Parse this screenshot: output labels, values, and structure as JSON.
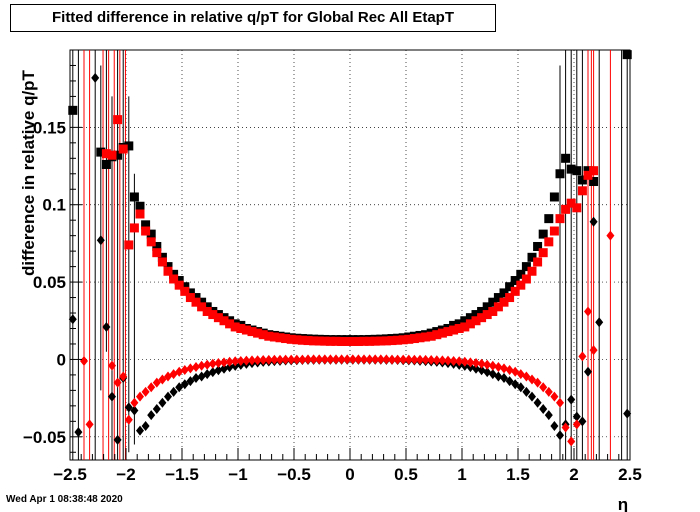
{
  "footer": {
    "timestamp": "Wed Apr  1 08:38:48 2020"
  },
  "chart_data": {
    "type": "scatter",
    "title": "Fitted difference in relative q/pT for Global Rec All EtapT",
    "xlabel": "η",
    "ylabel": "difference in relative q/pT",
    "xlim": [
      -2.5,
      2.5
    ],
    "ylim": [
      -0.065,
      0.2
    ],
    "grid": true,
    "x_ticks": [
      "−2.5",
      "−2",
      "−1.5",
      "−1",
      "−0.5",
      "0",
      "0.5",
      "1",
      "1.5",
      "2",
      "2.5"
    ],
    "y_ticks": [
      "−0.05",
      "0",
      "0.05",
      "0.1",
      "0.15"
    ],
    "series": [
      {
        "marker": "square",
        "color": "#000000",
        "x": [
          -2.475,
          -2.425,
          -2.375,
          -2.325,
          -2.275,
          -2.225,
          -2.175,
          -2.125,
          -2.075,
          -2.025,
          -1.975,
          -1.925,
          -1.875,
          -1.825,
          -1.775,
          -1.725,
          -1.675,
          -1.625,
          -1.575,
          -1.525,
          -1.475,
          -1.425,
          -1.375,
          -1.325,
          -1.275,
          -1.225,
          -1.175,
          -1.125,
          -1.075,
          -1.025,
          -0.975,
          -0.925,
          -0.875,
          -0.825,
          -0.775,
          -0.725,
          -0.675,
          -0.625,
          -0.575,
          -0.525,
          -0.475,
          -0.425,
          -0.375,
          -0.325,
          -0.275,
          -0.225,
          -0.175,
          -0.125,
          -0.075,
          -0.025,
          0.025,
          0.075,
          0.125,
          0.175,
          0.225,
          0.275,
          0.325,
          0.375,
          0.425,
          0.475,
          0.525,
          0.575,
          0.625,
          0.675,
          0.725,
          0.775,
          0.825,
          0.875,
          0.925,
          0.975,
          1.025,
          1.075,
          1.125,
          1.175,
          1.225,
          1.275,
          1.325,
          1.375,
          1.425,
          1.475,
          1.525,
          1.575,
          1.625,
          1.675,
          1.725,
          1.775,
          1.825,
          1.875,
          1.925,
          1.975,
          2.025,
          2.075,
          2.125,
          2.175,
          2.225,
          2.275,
          2.325,
          2.375,
          2.425,
          2.475
        ],
        "y": [
          0.161,
          null,
          null,
          null,
          null,
          0.134,
          0.126,
          0.131,
          0.132,
          0.137,
          0.138,
          0.105,
          0.099,
          0.087,
          0.081,
          0.073,
          0.066,
          0.06,
          0.055,
          0.051,
          0.047,
          0.043,
          0.04,
          0.037,
          0.034,
          0.031,
          0.029,
          0.027,
          0.025,
          0.023,
          0.022,
          0.02,
          0.019,
          0.018,
          0.017,
          0.016,
          0.0155,
          0.015,
          0.0145,
          0.014,
          0.0137,
          0.0135,
          0.0133,
          0.0131,
          0.013,
          0.0129,
          0.0128,
          0.0128,
          0.0128,
          0.0128,
          0.0128,
          0.0128,
          0.0128,
          0.0129,
          0.013,
          0.0131,
          0.0133,
          0.0135,
          0.0137,
          0.014,
          0.0145,
          0.015,
          0.0155,
          0.016,
          0.017,
          0.018,
          0.019,
          0.02,
          0.022,
          0.023,
          0.025,
          0.027,
          0.029,
          0.031,
          0.034,
          0.037,
          0.04,
          0.043,
          0.047,
          0.051,
          0.055,
          0.06,
          0.066,
          0.073,
          0.081,
          0.091,
          0.105,
          0.12,
          0.13,
          0.123,
          0.122,
          0.116,
          0.122,
          0.115,
          null,
          null,
          null,
          null,
          null,
          0.197
        ]
      },
      {
        "marker": "square",
        "color": "#ff0000",
        "x": [
          -2.175,
          -2.125,
          -2.075,
          -2.025,
          -1.975,
          -1.925,
          -1.875,
          -1.825,
          -1.775,
          -1.725,
          -1.675,
          -1.625,
          -1.575,
          -1.525,
          -1.475,
          -1.425,
          -1.375,
          -1.325,
          -1.275,
          -1.225,
          -1.175,
          -1.125,
          -1.075,
          -1.025,
          -0.975,
          -0.925,
          -0.875,
          -0.825,
          -0.775,
          -0.725,
          -0.675,
          -0.625,
          -0.575,
          -0.525,
          -0.475,
          -0.425,
          -0.375,
          -0.325,
          -0.275,
          -0.225,
          -0.175,
          -0.125,
          -0.075,
          -0.025,
          0.025,
          0.075,
          0.125,
          0.175,
          0.225,
          0.275,
          0.325,
          0.375,
          0.425,
          0.475,
          0.525,
          0.575,
          0.625,
          0.675,
          0.725,
          0.775,
          0.825,
          0.875,
          0.925,
          0.975,
          1.025,
          1.075,
          1.125,
          1.175,
          1.225,
          1.275,
          1.325,
          1.375,
          1.425,
          1.475,
          1.525,
          1.575,
          1.625,
          1.675,
          1.725,
          1.775,
          1.825,
          1.875,
          1.925,
          1.975,
          2.025,
          2.075,
          2.125,
          2.175
        ],
        "y": [
          0.133,
          0.132,
          0.155,
          0.136,
          0.074,
          0.085,
          0.094,
          0.083,
          0.076,
          0.069,
          0.063,
          0.057,
          0.052,
          0.048,
          0.044,
          0.04,
          0.037,
          0.034,
          0.031,
          0.029,
          0.027,
          0.025,
          0.023,
          0.021,
          0.02,
          0.019,
          0.018,
          0.017,
          0.016,
          0.015,
          0.0145,
          0.014,
          0.0135,
          0.013,
          0.0127,
          0.0124,
          0.0122,
          0.012,
          0.0119,
          0.0118,
          0.0117,
          0.0117,
          0.0116,
          0.0116,
          0.0116,
          0.0116,
          0.0117,
          0.0117,
          0.0118,
          0.0119,
          0.012,
          0.0122,
          0.0124,
          0.0127,
          0.013,
          0.0135,
          0.014,
          0.0145,
          0.015,
          0.016,
          0.017,
          0.018,
          0.019,
          0.02,
          0.021,
          0.023,
          0.025,
          0.027,
          0.029,
          0.031,
          0.034,
          0.037,
          0.04,
          0.044,
          0.048,
          0.052,
          0.057,
          0.063,
          0.069,
          0.076,
          0.083,
          0.091,
          0.097,
          0.101,
          0.098,
          0.109,
          0.119,
          0.122
        ]
      },
      {
        "marker": "diamond",
        "color": "#000000",
        "x": [
          -2.475,
          -2.425,
          -2.375,
          -2.325,
          -2.275,
          -2.225,
          -2.175,
          -2.125,
          -2.075,
          -2.025,
          -1.975,
          -1.925,
          -1.875,
          -1.825,
          -1.775,
          -1.725,
          -1.675,
          -1.625,
          -1.575,
          -1.525,
          -1.475,
          -1.425,
          -1.375,
          -1.325,
          -1.275,
          -1.225,
          -1.175,
          -1.125,
          -1.075,
          -1.025,
          -0.975,
          -0.925,
          -0.875,
          -0.825,
          -0.775,
          -0.725,
          -0.675,
          -0.625,
          -0.575,
          -0.525,
          -0.475,
          -0.425,
          -0.375,
          -0.325,
          -0.275,
          -0.225,
          -0.175,
          -0.125,
          -0.075,
          -0.025,
          0.025,
          0.075,
          0.125,
          0.175,
          0.225,
          0.275,
          0.325,
          0.375,
          0.425,
          0.475,
          0.525,
          0.575,
          0.625,
          0.675,
          0.725,
          0.775,
          0.825,
          0.875,
          0.925,
          0.975,
          1.025,
          1.075,
          1.125,
          1.175,
          1.225,
          1.275,
          1.325,
          1.375,
          1.425,
          1.475,
          1.525,
          1.575,
          1.625,
          1.675,
          1.725,
          1.775,
          1.825,
          1.875,
          1.925,
          1.975,
          2.025,
          2.075,
          2.125,
          2.175,
          2.225,
          2.275,
          2.325,
          2.375,
          2.425,
          2.475
        ],
        "y": [
          0.026,
          -0.047,
          null,
          null,
          0.182,
          0.077,
          0.021,
          -0.024,
          -0.052,
          -0.012,
          -0.031,
          -0.033,
          -0.046,
          -0.043,
          -0.036,
          -0.032,
          -0.028,
          -0.024,
          -0.021,
          -0.018,
          -0.016,
          -0.014,
          -0.012,
          -0.011,
          -0.0095,
          -0.0082,
          -0.007,
          -0.006,
          -0.005,
          -0.0042,
          -0.0035,
          -0.0029,
          -0.0024,
          -0.002,
          -0.0016,
          -0.0013,
          -0.0011,
          -0.0009,
          -0.0007,
          -0.0006,
          -0.0005,
          -0.0004,
          -0.0003,
          -0.0003,
          -0.0002,
          -0.0002,
          -0.0002,
          -0.0002,
          -0.0002,
          -0.0002,
          -0.0002,
          -0.0002,
          -0.0002,
          -0.0002,
          -0.0002,
          -0.0002,
          -0.0003,
          -0.0003,
          -0.0004,
          -0.0005,
          -0.0006,
          -0.0007,
          -0.0009,
          -0.0011,
          -0.0013,
          -0.0016,
          -0.002,
          -0.0024,
          -0.0029,
          -0.0035,
          -0.0042,
          -0.005,
          -0.006,
          -0.007,
          -0.0082,
          -0.0095,
          -0.011,
          -0.012,
          -0.014,
          -0.016,
          -0.018,
          -0.021,
          -0.024,
          -0.028,
          -0.032,
          -0.036,
          -0.043,
          -0.049,
          -0.042,
          -0.026,
          -0.037,
          -0.04,
          -0.008,
          0.089,
          0.024,
          null,
          null,
          null,
          null,
          -0.035
        ]
      },
      {
        "marker": "diamond",
        "color": "#ff0000",
        "x": [
          -2.375,
          -2.325,
          -2.125,
          -2.075,
          -2.025,
          -1.975,
          -1.925,
          -1.875,
          -1.825,
          -1.775,
          -1.725,
          -1.675,
          -1.625,
          -1.575,
          -1.525,
          -1.475,
          -1.425,
          -1.375,
          -1.325,
          -1.275,
          -1.225,
          -1.175,
          -1.125,
          -1.075,
          -1.025,
          -0.975,
          -0.925,
          -0.875,
          -0.825,
          -0.775,
          -0.725,
          -0.675,
          -0.625,
          -0.575,
          -0.525,
          -0.475,
          -0.425,
          -0.375,
          -0.325,
          -0.275,
          -0.225,
          -0.175,
          -0.125,
          -0.075,
          -0.025,
          0.025,
          0.075,
          0.125,
          0.175,
          0.225,
          0.275,
          0.325,
          0.375,
          0.425,
          0.475,
          0.525,
          0.575,
          0.625,
          0.675,
          0.725,
          0.775,
          0.825,
          0.875,
          0.925,
          0.975,
          1.025,
          1.075,
          1.125,
          1.175,
          1.225,
          1.275,
          1.325,
          1.375,
          1.425,
          1.475,
          1.525,
          1.575,
          1.625,
          1.675,
          1.725,
          1.775,
          1.825,
          1.875,
          1.925,
          1.975,
          2.025,
          2.075,
          2.125,
          2.175,
          2.325
        ],
        "y": [
          -0.001,
          -0.042,
          -0.004,
          -0.015,
          -0.011,
          -0.039,
          -0.028,
          -0.024,
          -0.021,
          -0.018,
          -0.015,
          -0.013,
          -0.011,
          -0.0095,
          -0.008,
          -0.0068,
          -0.0058,
          -0.0049,
          -0.0041,
          -0.0034,
          -0.0028,
          -0.0023,
          -0.0019,
          -0.0015,
          -0.0012,
          -0.001,
          -0.0008,
          -0.0006,
          -0.0005,
          -0.0004,
          -0.0003,
          -0.0002,
          -0.0002,
          -0.0001,
          -0.0001,
          -0.0001,
          -0.0001,
          0.0,
          0.0,
          0.0,
          0.0,
          0.0,
          0.0,
          0.0,
          0.0,
          0.0,
          0.0,
          0.0,
          0.0,
          0.0,
          0.0,
          0.0,
          -0.0001,
          -0.0001,
          -0.0001,
          -0.0001,
          -0.0002,
          -0.0002,
          -0.0003,
          -0.0004,
          -0.0005,
          -0.0006,
          -0.0008,
          -0.001,
          -0.0012,
          -0.0015,
          -0.0019,
          -0.0023,
          -0.0028,
          -0.0034,
          -0.0041,
          -0.0049,
          -0.0058,
          -0.0068,
          -0.008,
          -0.0095,
          -0.011,
          -0.013,
          -0.015,
          -0.018,
          -0.021,
          -0.024,
          -0.028,
          -0.044,
          -0.053,
          -0.042,
          0.002,
          0.031,
          0.006,
          0.08
        ]
      }
    ],
    "error_bars": [
      {
        "x": -2.475,
        "low": -0.065,
        "high": 0.2,
        "color": "#000000"
      },
      {
        "x": -2.425,
        "low": -0.065,
        "high": 0.2,
        "color": "#000000"
      },
      {
        "x": -2.375,
        "low": -0.065,
        "high": 0.2,
        "color": "#ff0000"
      },
      {
        "x": -2.325,
        "low": -0.065,
        "high": 0.2,
        "color": "#ff0000"
      },
      {
        "x": -2.275,
        "low": -0.065,
        "high": 0.2,
        "color": "#000000"
      },
      {
        "x": -2.225,
        "low": -0.02,
        "high": 0.19,
        "color": "#000000"
      },
      {
        "x": -2.205,
        "low": -0.065,
        "high": 0.2,
        "color": "#ff0000"
      },
      {
        "x": -2.175,
        "low": 0.005,
        "high": 0.2,
        "color": "#000000"
      },
      {
        "x": -2.155,
        "low": -0.065,
        "high": 0.2,
        "color": "#ff0000"
      },
      {
        "x": -2.125,
        "low": -0.065,
        "high": 0.17,
        "color": "#000000"
      },
      {
        "x": -2.105,
        "low": -0.065,
        "high": 0.2,
        "color": "#ff0000"
      },
      {
        "x": -2.075,
        "low": -0.065,
        "high": 0.2,
        "color": "#000000"
      },
      {
        "x": -2.055,
        "low": -0.065,
        "high": 0.2,
        "color": "#ff0000"
      },
      {
        "x": -2.025,
        "low": -0.065,
        "high": 0.2,
        "color": "#000000"
      },
      {
        "x": -2.005,
        "low": -0.065,
        "high": 0.2,
        "color": "#ff0000"
      },
      {
        "x": -1.975,
        "low": -0.06,
        "high": 0.17,
        "color": "#000000"
      },
      {
        "x": -1.925,
        "low": -0.055,
        "high": 0.12,
        "color": "#000000"
      },
      {
        "x": 1.875,
        "low": -0.065,
        "high": 0.19,
        "color": "#000000"
      },
      {
        "x": 1.925,
        "low": -0.065,
        "high": 0.2,
        "color": "#000000"
      },
      {
        "x": 1.975,
        "low": -0.065,
        "high": 0.2,
        "color": "#000000"
      },
      {
        "x": 2.025,
        "low": -0.065,
        "high": 0.2,
        "color": "#000000"
      },
      {
        "x": 2.075,
        "low": -0.065,
        "high": 0.2,
        "color": "#000000"
      },
      {
        "x": 2.125,
        "low": -0.065,
        "high": 0.2,
        "color": "#ff0000"
      },
      {
        "x": 2.155,
        "low": -0.065,
        "high": 0.2,
        "color": "#ff0000"
      },
      {
        "x": 2.175,
        "low": -0.065,
        "high": 0.2,
        "color": "#ff0000"
      },
      {
        "x": 2.225,
        "low": -0.065,
        "high": 0.2,
        "color": "#000000"
      },
      {
        "x": 2.325,
        "low": -0.065,
        "high": 0.2,
        "color": "#ff0000"
      },
      {
        "x": 2.425,
        "low": -0.065,
        "high": 0.2,
        "color": "#000000"
      },
      {
        "x": 2.475,
        "low": -0.065,
        "high": 0.2,
        "color": "#000000"
      }
    ]
  }
}
